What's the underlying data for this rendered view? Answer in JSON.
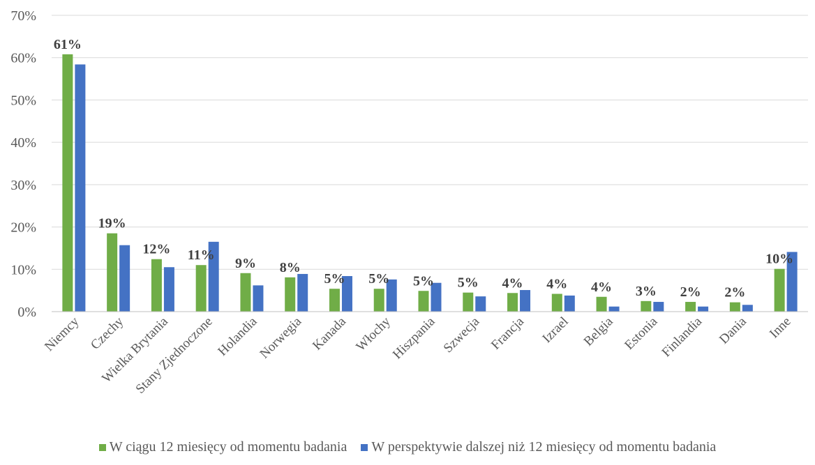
{
  "chart_data": {
    "type": "bar",
    "categories": [
      "Niemcy",
      "Czechy",
      "Wielka Brytania",
      "Stany Zjednoczone",
      "Holandia",
      "Norwegia",
      "Kanada",
      "Włochy",
      "Hiszpania",
      "Szwecja",
      "Francja",
      "Izrael",
      "Belgia",
      "Estonia",
      "Finlandia",
      "Dania",
      "Inne"
    ],
    "series": [
      {
        "name": "W ciągu 12 miesięcy od momentu badania",
        "color": "#70ad47",
        "values": [
          60.8,
          18.5,
          12.4,
          11.0,
          9.1,
          8.1,
          5.4,
          5.4,
          4.9,
          4.5,
          4.4,
          4.2,
          3.5,
          2.5,
          2.3,
          2.2,
          10.1
        ],
        "labels": [
          "61%",
          "19%",
          "12%",
          "11%",
          "9%",
          "8%",
          "5%",
          "5%",
          "5%",
          "5%",
          "4%",
          "4%",
          "4%",
          "3%",
          "2%",
          "2%",
          "10%"
        ]
      },
      {
        "name": "W perspektywie dalszej niż 12 miesięcy od momentu badania",
        "color": "#4472c4",
        "values": [
          58.4,
          15.7,
          10.5,
          16.5,
          6.2,
          8.9,
          8.4,
          7.6,
          6.8,
          3.6,
          5.1,
          3.8,
          1.2,
          2.3,
          1.2,
          1.6,
          14.1
        ]
      }
    ],
    "y_ticks": [
      "0%",
      "10%",
      "20%",
      "30%",
      "40%",
      "50%",
      "60%",
      "70%"
    ],
    "ylim": [
      0,
      70
    ],
    "grid": true,
    "legend_position": "bottom"
  }
}
